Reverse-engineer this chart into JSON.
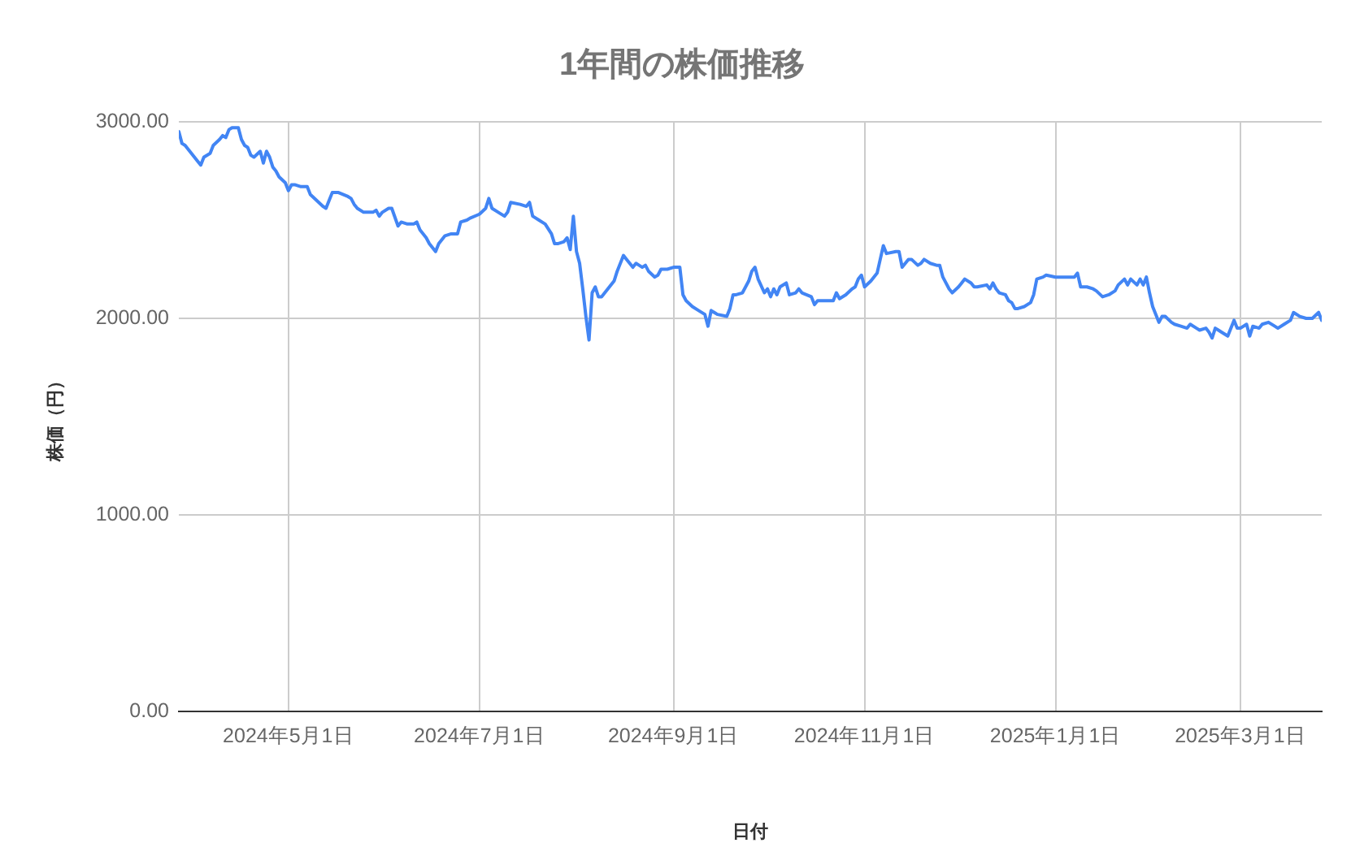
{
  "chart_data": {
    "type": "line",
    "title": "1年間の株価推移",
    "xlabel": "日付",
    "ylabel": "株価（円）",
    "x": [
      "2024-03-27",
      "2024-03-28",
      "2024-03-29",
      "2024-03-31",
      "2024-04-02",
      "2024-04-03",
      "2024-04-04",
      "2024-04-06",
      "2024-04-07",
      "2024-04-09",
      "2024-04-10",
      "2024-04-11",
      "2024-04-12",
      "2024-04-13",
      "2024-04-15",
      "2024-04-16",
      "2024-04-17",
      "2024-04-18",
      "2024-04-19",
      "2024-04-20",
      "2024-04-22",
      "2024-04-23",
      "2024-04-24",
      "2024-04-25",
      "2024-04-26",
      "2024-04-27",
      "2024-04-28",
      "2024-04-30",
      "2024-05-01",
      "2024-05-02",
      "2024-05-03",
      "2024-05-05",
      "2024-05-07",
      "2024-05-08",
      "2024-05-10",
      "2024-05-12",
      "2024-05-13",
      "2024-05-14",
      "2024-05-15",
      "2024-05-17",
      "2024-05-20",
      "2024-05-21",
      "2024-05-22",
      "2024-05-23",
      "2024-05-25",
      "2024-05-26",
      "2024-05-28",
      "2024-05-29",
      "2024-05-30",
      "2024-05-31",
      "2024-06-02",
      "2024-06-03",
      "2024-06-05",
      "2024-06-06",
      "2024-06-08",
      "2024-06-10",
      "2024-06-11",
      "2024-06-12",
      "2024-06-14",
      "2024-06-15",
      "2024-06-17",
      "2024-06-18",
      "2024-06-20",
      "2024-06-22",
      "2024-06-24",
      "2024-06-25",
      "2024-06-27",
      "2024-06-28",
      "2024-07-01",
      "2024-07-03",
      "2024-07-04",
      "2024-07-05",
      "2024-07-07",
      "2024-07-09",
      "2024-07-10",
      "2024-07-11",
      "2024-07-14",
      "2024-07-16",
      "2024-07-17",
      "2024-07-18",
      "2024-07-20",
      "2024-07-22",
      "2024-07-24",
      "2024-07-25",
      "2024-07-26",
      "2024-07-28",
      "2024-07-29",
      "2024-07-30",
      "2024-07-31",
      "2024-08-01",
      "2024-08-02",
      "2024-08-03",
      "2024-08-04",
      "2024-08-05",
      "2024-08-06",
      "2024-08-07",
      "2024-08-08",
      "2024-08-09",
      "2024-08-11",
      "2024-08-13",
      "2024-08-14",
      "2024-08-16",
      "2024-08-17",
      "2024-08-18",
      "2024-08-19",
      "2024-08-20",
      "2024-08-21",
      "2024-08-22",
      "2024-08-23",
      "2024-08-24",
      "2024-08-26",
      "2024-08-27",
      "2024-08-28",
      "2024-08-30",
      "2024-09-01",
      "2024-09-03",
      "2024-09-04",
      "2024-09-05",
      "2024-09-07",
      "2024-09-09",
      "2024-09-11",
      "2024-09-12",
      "2024-09-13",
      "2024-09-14",
      "2024-09-15",
      "2024-09-18",
      "2024-09-19",
      "2024-09-20",
      "2024-09-21",
      "2024-09-23",
      "2024-09-25",
      "2024-09-26",
      "2024-09-27",
      "2024-09-28",
      "2024-09-30",
      "2024-10-01",
      "2024-10-02",
      "2024-10-03",
      "2024-10-04",
      "2024-10-05",
      "2024-10-07",
      "2024-10-08",
      "2024-10-10",
      "2024-10-11",
      "2024-10-12",
      "2024-10-15",
      "2024-10-16",
      "2024-10-17",
      "2024-10-20",
      "2024-10-22",
      "2024-10-23",
      "2024-10-24",
      "2024-10-26",
      "2024-10-28",
      "2024-10-29",
      "2024-10-30",
      "2024-10-31",
      "2024-11-01",
      "2024-11-03",
      "2024-11-05",
      "2024-11-06",
      "2024-11-07",
      "2024-11-08",
      "2024-11-11",
      "2024-11-12",
      "2024-11-13",
      "2024-11-15",
      "2024-11-16",
      "2024-11-18",
      "2024-11-19",
      "2024-11-20",
      "2024-11-22",
      "2024-11-24",
      "2024-11-25",
      "2024-11-26",
      "2024-11-28",
      "2024-11-29",
      "2024-12-01",
      "2024-12-02",
      "2024-12-03",
      "2024-12-05",
      "2024-12-06",
      "2024-12-07",
      "2024-12-10",
      "2024-12-11",
      "2024-12-12",
      "2024-12-13",
      "2024-12-14",
      "2024-12-16",
      "2024-12-17",
      "2024-12-18",
      "2024-12-19",
      "2024-12-20",
      "2024-12-22",
      "2024-12-24",
      "2024-12-25",
      "2024-12-26",
      "2024-12-28",
      "2024-12-29",
      "2025-01-01",
      "2025-01-04",
      "2025-01-07",
      "2025-01-08",
      "2025-01-09",
      "2025-01-11",
      "2025-01-13",
      "2025-01-14",
      "2025-01-16",
      "2025-01-18",
      "2025-01-20",
      "2025-01-21",
      "2025-01-23",
      "2025-01-24",
      "2025-01-25",
      "2025-01-27",
      "2025-01-28",
      "2025-01-29",
      "2025-01-30",
      "2025-01-31",
      "2025-02-01",
      "2025-02-03",
      "2025-02-04",
      "2025-02-05",
      "2025-02-07",
      "2025-02-08",
      "2025-02-10",
      "2025-02-12",
      "2025-02-13",
      "2025-02-15",
      "2025-02-16",
      "2025-02-18",
      "2025-02-19",
      "2025-02-20",
      "2025-02-21",
      "2025-02-22",
      "2025-02-23",
      "2025-02-25",
      "2025-02-26",
      "2025-02-27",
      "2025-02-28",
      "2025-03-01",
      "2025-03-03",
      "2025-03-04",
      "2025-03-05",
      "2025-03-07",
      "2025-03-08",
      "2025-03-10",
      "2025-03-12",
      "2025-03-13",
      "2025-03-15",
      "2025-03-17",
      "2025-03-18",
      "2025-03-20",
      "2025-03-22",
      "2025-03-24",
      "2025-03-26",
      "2025-03-27"
    ],
    "series": [
      {
        "color": "#4285f4",
        "values": [
          2950,
          2890,
          2880,
          2840,
          2800,
          2780,
          2820,
          2840,
          2880,
          2910,
          2930,
          2920,
          2960,
          2970,
          2970,
          2910,
          2880,
          2870,
          2830,
          2820,
          2850,
          2790,
          2850,
          2820,
          2770,
          2750,
          2720,
          2690,
          2650,
          2680,
          2680,
          2670,
          2670,
          2630,
          2600,
          2570,
          2560,
          2600,
          2640,
          2640,
          2620,
          2610,
          2580,
          2560,
          2540,
          2540,
          2540,
          2550,
          2520,
          2540,
          2560,
          2560,
          2470,
          2490,
          2480,
          2480,
          2490,
          2450,
          2410,
          2380,
          2340,
          2380,
          2420,
          2430,
          2430,
          2490,
          2500,
          2510,
          2530,
          2560,
          2610,
          2560,
          2540,
          2520,
          2540,
          2590,
          2580,
          2570,
          2590,
          2520,
          2500,
          2480,
          2430,
          2380,
          2380,
          2390,
          2410,
          2350,
          2520,
          2340,
          2280,
          2150,
          2010,
          1890,
          2130,
          2160,
          2110,
          2110,
          2150,
          2190,
          2240,
          2320,
          2300,
          2280,
          2260,
          2280,
          2270,
          2260,
          2270,
          2240,
          2210,
          2220,
          2250,
          2250,
          2260,
          2260,
          2120,
          2090,
          2060,
          2040,
          2020,
          1960,
          2040,
          2030,
          2020,
          2010,
          2050,
          2120,
          2120,
          2130,
          2190,
          2240,
          2260,
          2200,
          2130,
          2150,
          2110,
          2150,
          2120,
          2160,
          2180,
          2120,
          2130,
          2150,
          2130,
          2110,
          2070,
          2090,
          2090,
          2090,
          2130,
          2100,
          2120,
          2150,
          2160,
          2200,
          2220,
          2160,
          2190,
          2230,
          2300,
          2370,
          2330,
          2340,
          2340,
          2260,
          2300,
          2300,
          2270,
          2280,
          2300,
          2280,
          2270,
          2270,
          2210,
          2150,
          2130,
          2160,
          2180,
          2200,
          2180,
          2160,
          2160,
          2170,
          2150,
          2180,
          2150,
          2130,
          2120,
          2090,
          2080,
          2050,
          2050,
          2060,
          2080,
          2120,
          2200,
          2210,
          2220,
          2210,
          2210,
          2210,
          2230,
          2160,
          2160,
          2150,
          2140,
          2110,
          2120,
          2140,
          2170,
          2200,
          2170,
          2200,
          2170,
          2200,
          2170,
          2210,
          2130,
          2060,
          1980,
          2010,
          2010,
          1980,
          1970,
          1960,
          1950,
          1970,
          1950,
          1940,
          1950,
          1930,
          1900,
          1950,
          1940,
          1930,
          1910,
          1950,
          1990,
          1950,
          1950,
          1970,
          1910,
          1960,
          1950,
          1970,
          1980,
          1960,
          1950,
          1970,
          1990,
          2030,
          2010,
          2000,
          2000,
          2030,
          1990
        ]
      }
    ],
    "xlim": [
      "2024-03-27",
      "2025-03-27"
    ],
    "xticks": [
      {
        "value": "2024-05-01",
        "label": "2024年5月1日"
      },
      {
        "value": "2024-07-01",
        "label": "2024年7月1日"
      },
      {
        "value": "2024-09-01",
        "label": "2024年9月1日"
      },
      {
        "value": "2024-11-01",
        "label": "2024年11月1日"
      },
      {
        "value": "2025-01-01",
        "label": "2025年1月1日"
      },
      {
        "value": "2025-03-01",
        "label": "2025年3月1日"
      }
    ],
    "ylim": [
      0,
      3000
    ],
    "yticks": [
      {
        "value": 0,
        "label": "0.00"
      },
      {
        "value": 1000,
        "label": "1000.00"
      },
      {
        "value": 2000,
        "label": "2000.00"
      },
      {
        "value": 3000,
        "label": "3000.00"
      }
    ],
    "grid": true,
    "legend": false
  }
}
